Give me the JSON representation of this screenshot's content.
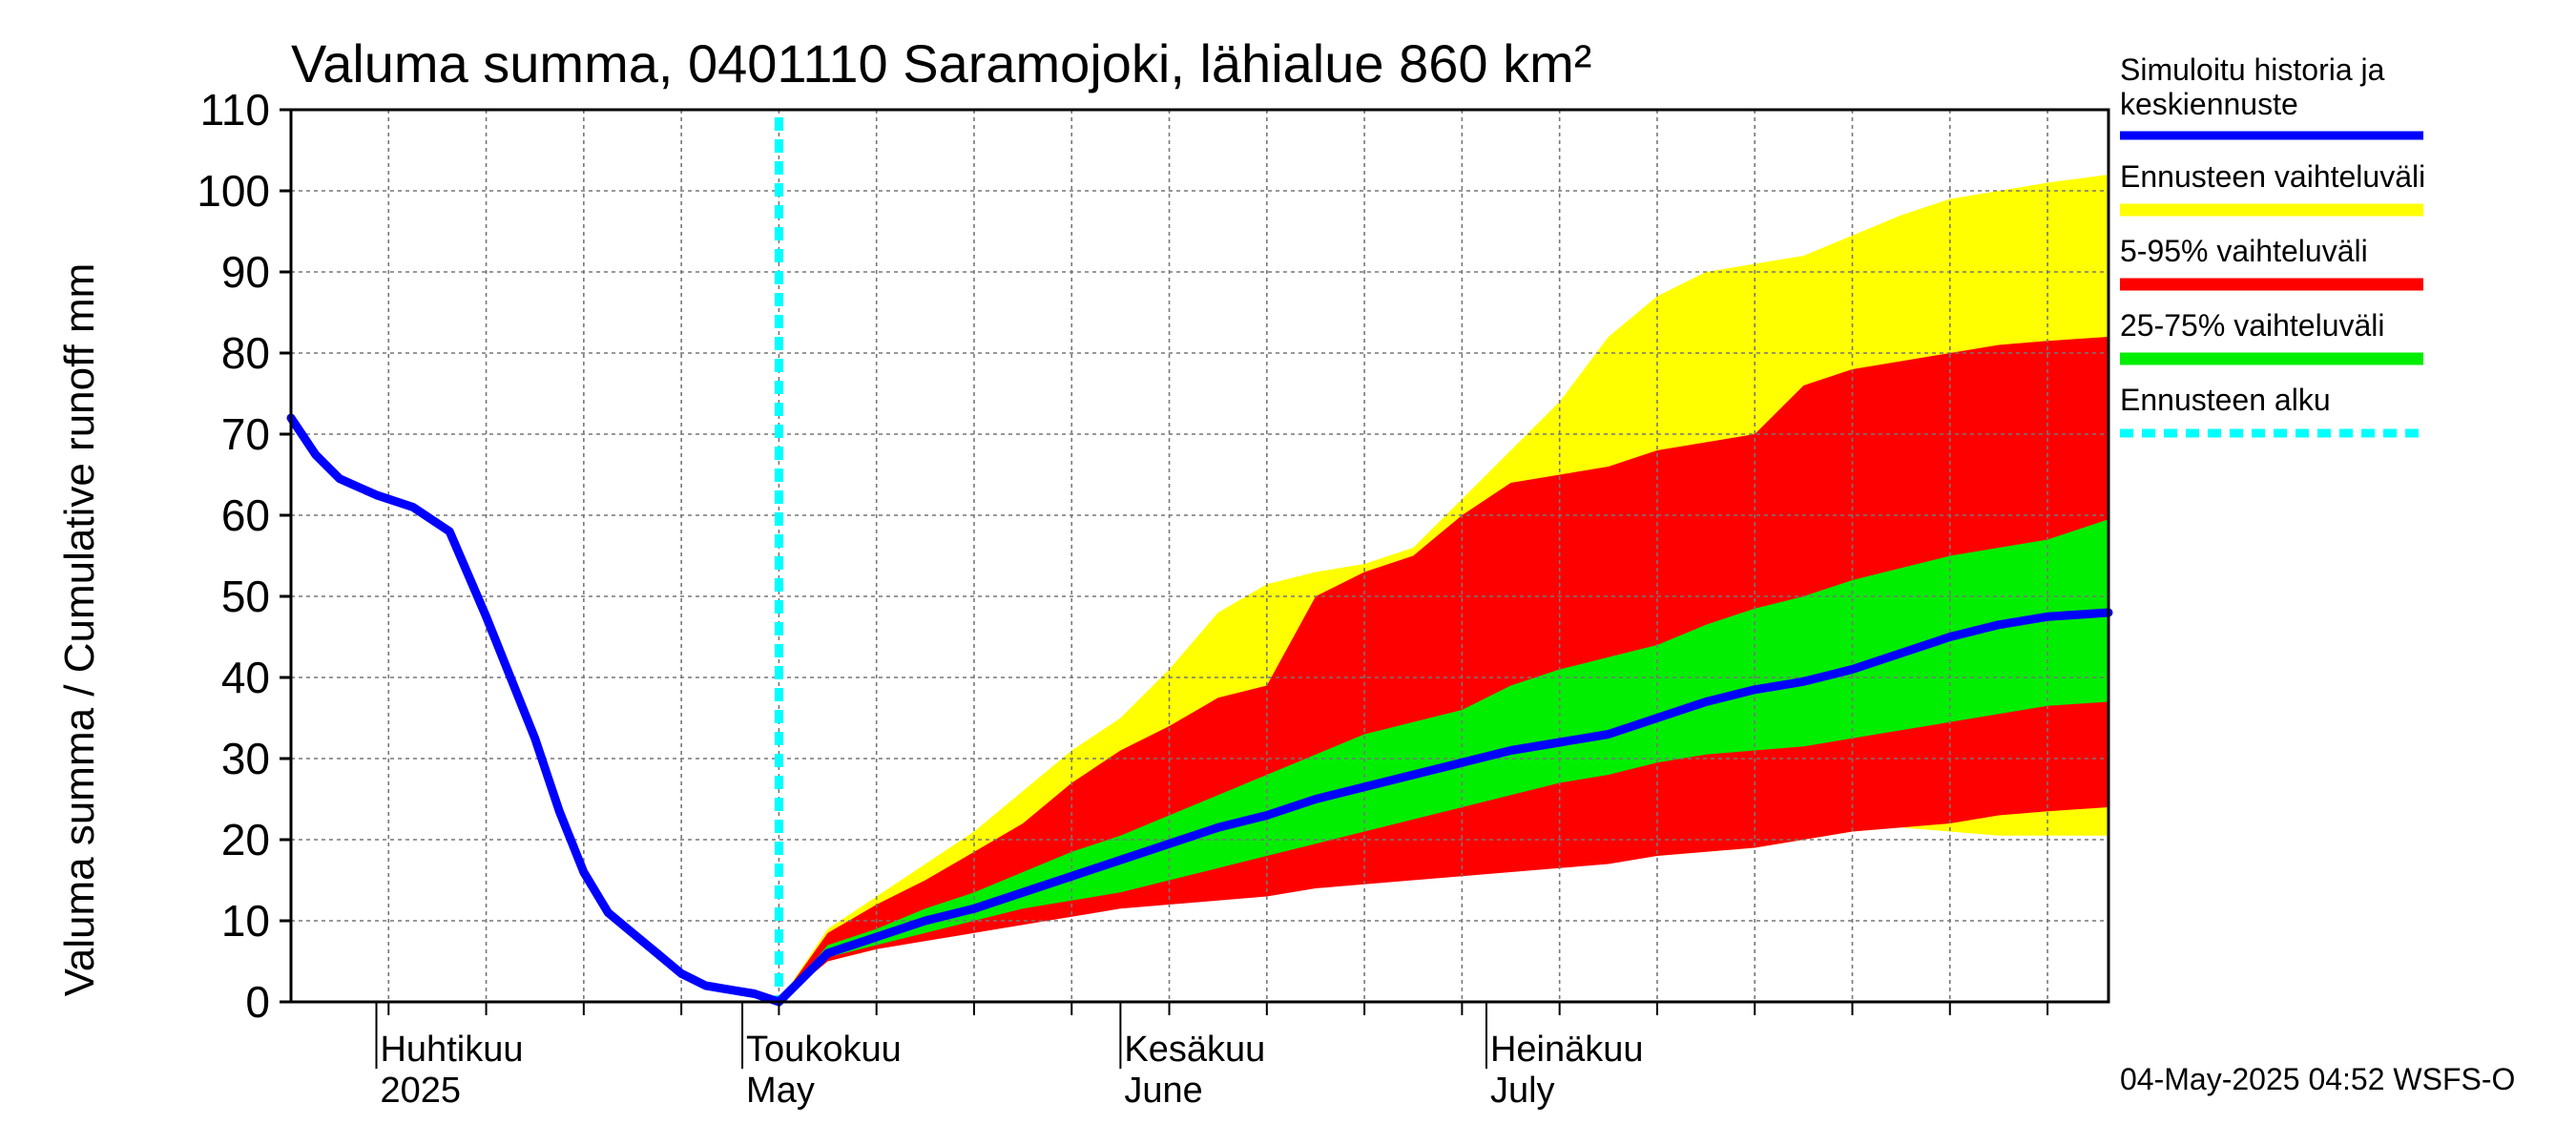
{
  "chart_data": {
    "type": "area",
    "title": "Valuma summa, 0401110 Saramojoki, lähialue 860 km²",
    "ylabel": "Valuma summa / Cumulative runoff    mm",
    "ylim": [
      0,
      110
    ],
    "yticks": [
      0,
      10,
      20,
      30,
      40,
      50,
      60,
      70,
      80,
      90,
      100,
      110
    ],
    "xlim": [
      "2025-03-25",
      "2025-08-21"
    ],
    "grid": true,
    "legend_position": "right",
    "forecast_start": "2025-05-04",
    "months": [
      {
        "fi": "Huhtikuu",
        "en": "2025",
        "date": "2025-04-01"
      },
      {
        "fi": "Toukokuu",
        "en": "May",
        "date": "2025-05-01"
      },
      {
        "fi": "Kesäkuu",
        "en": "June",
        "date": "2025-06-01"
      },
      {
        "fi": "Heinäkuu",
        "en": "July",
        "date": "2025-07-01"
      }
    ],
    "history": {
      "dates": [
        "2025-03-25",
        "2025-03-27",
        "2025-03-29",
        "2025-04-01",
        "2025-04-04",
        "2025-04-07",
        "2025-04-10",
        "2025-04-12",
        "2025-04-14",
        "2025-04-16",
        "2025-04-18",
        "2025-04-20",
        "2025-04-22",
        "2025-04-24",
        "2025-04-26",
        "2025-04-28",
        "2025-04-30",
        "2025-05-02",
        "2025-05-04"
      ],
      "values": [
        72,
        67.5,
        64.5,
        62.5,
        61,
        58,
        47.5,
        40,
        32.5,
        23.5,
        16,
        11,
        8.5,
        6,
        3.5,
        2,
        1.5,
        1,
        0
      ]
    },
    "forecast_dates": [
      "2025-05-04",
      "2025-05-08",
      "2025-05-12",
      "2025-05-16",
      "2025-05-20",
      "2025-05-24",
      "2025-05-28",
      "2025-06-01",
      "2025-06-05",
      "2025-06-09",
      "2025-06-13",
      "2025-06-17",
      "2025-06-21",
      "2025-06-25",
      "2025-06-29",
      "2025-07-03",
      "2025-07-07",
      "2025-07-11",
      "2025-07-15",
      "2025-07-19",
      "2025-07-23",
      "2025-07-27",
      "2025-07-31",
      "2025-08-04",
      "2025-08-08",
      "2025-08-12",
      "2025-08-16",
      "2025-08-21"
    ],
    "series": [
      {
        "name": "Simuloitu historia ja keskiennuste",
        "color": "#0000ff",
        "values": [
          0,
          6,
          8,
          10,
          11.5,
          13.5,
          15.5,
          17.5,
          19.5,
          21.5,
          23,
          25,
          26.5,
          28,
          29.5,
          31,
          32,
          33,
          35,
          37,
          38.5,
          39.5,
          41,
          43,
          45,
          46.5,
          47.5,
          48
        ]
      },
      {
        "name": "Ennusteen vaihteluväli",
        "color": "#ffff00",
        "lower": [
          0,
          5,
          6.5,
          8,
          9,
          10.5,
          11.5,
          12,
          12.5,
          13,
          13.5,
          14,
          15,
          15.5,
          16,
          16.5,
          17,
          17.5,
          18,
          18.5,
          19,
          20,
          21,
          21.5,
          21,
          20.5,
          20.5,
          20.5
        ],
        "upper": [
          0,
          9,
          13,
          17,
          21,
          26,
          31,
          35,
          41,
          48,
          51.5,
          53,
          54,
          56,
          62,
          68,
          74,
          82,
          87,
          90,
          91,
          92,
          94.5,
          97,
          99,
          100,
          101,
          102
        ]
      },
      {
        "name": "5-95% vaihteluväli",
        "color": "#ff0000",
        "lower": [
          0,
          5,
          6.5,
          7.5,
          8.5,
          9.5,
          10.5,
          11.5,
          12,
          12.5,
          13,
          14,
          14.5,
          15,
          15.5,
          16,
          16.5,
          17,
          18,
          18.5,
          19,
          20,
          21,
          21.5,
          22,
          23,
          23.5,
          24
        ],
        "upper": [
          0,
          8.5,
          12,
          15,
          18.5,
          22,
          27,
          31,
          34,
          37.5,
          39,
          50,
          53,
          55,
          60,
          64,
          65,
          66,
          68,
          69,
          70,
          76,
          78,
          79,
          80,
          81,
          81.5,
          82
        ]
      },
      {
        "name": "25-75% vaihteluväli",
        "color": "#00ee00",
        "lower": [
          0,
          5.5,
          7,
          8.5,
          10,
          11.5,
          12.5,
          13.5,
          15,
          16.5,
          18,
          19.5,
          21,
          22.5,
          24,
          25.5,
          27,
          28,
          29.5,
          30.5,
          31,
          31.5,
          32.5,
          33.5,
          34.5,
          35.5,
          36.5,
          37
        ]
      },
      {
        "name": "Ennusteen alku",
        "color": "#00ffff",
        "date": "2025-05-04"
      }
    ],
    "band_25_75_upper": [
      0,
      7,
      9,
      11.5,
      13.5,
      16,
      18.5,
      20.5,
      23,
      25.5,
      28,
      30.5,
      33,
      34.5,
      36,
      39,
      41,
      42.5,
      44,
      46.5,
      48.5,
      50,
      52,
      53.5,
      55,
      56,
      57,
      59.5
    ]
  },
  "footer_text": "04-May-2025 04:52 WSFS-O"
}
